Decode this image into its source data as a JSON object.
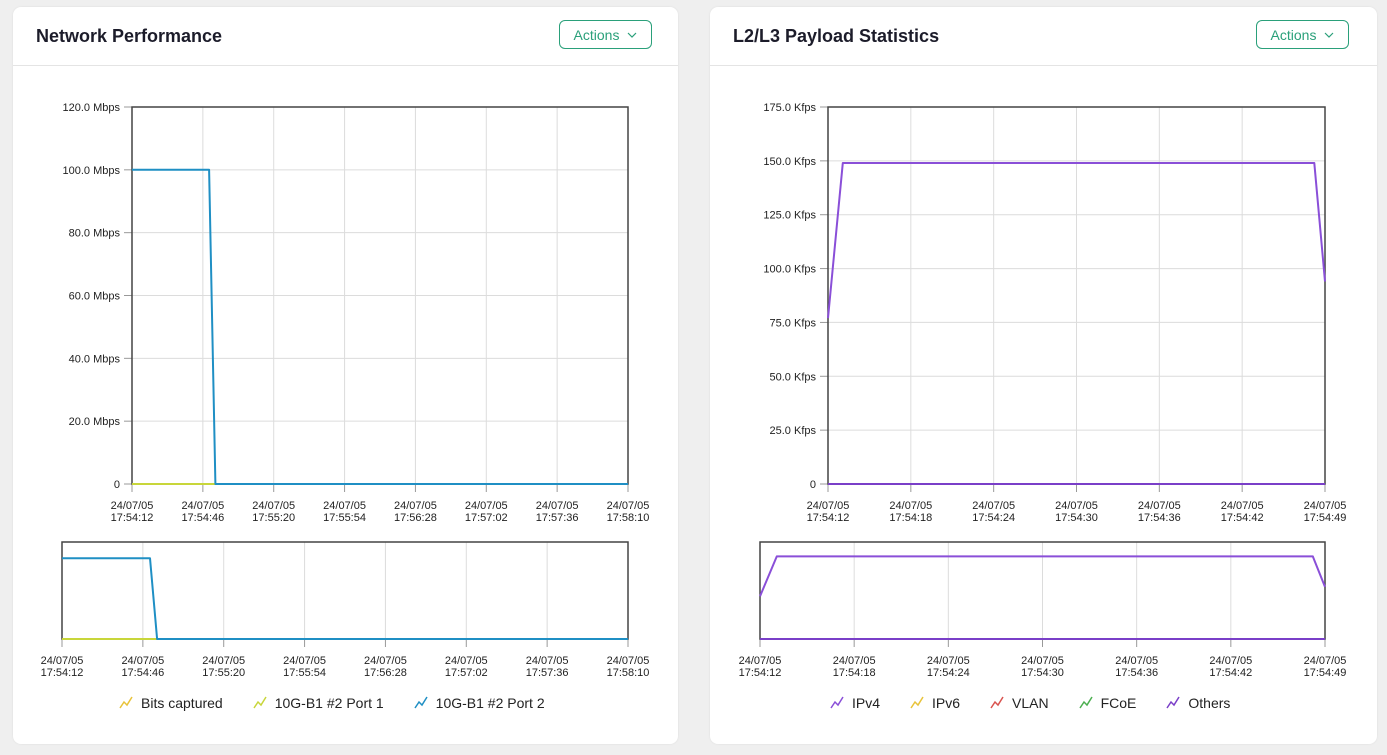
{
  "left_card": {
    "title": "Network Performance",
    "actions_label": "Actions",
    "legend": [
      {
        "label": "Bits captured",
        "color": "#e8c33a"
      },
      {
        "label": "10G-B1 #2 Port 1",
        "color": "#c8d63a"
      },
      {
        "label": "10G-B1 #2 Port 2",
        "color": "#1f8fc4"
      }
    ]
  },
  "right_card": {
    "title": "L2/L3 Payload Statistics",
    "actions_label": "Actions",
    "legend": [
      {
        "label": "IPv4",
        "color": "#8a4fd8"
      },
      {
        "label": "IPv6",
        "color": "#e8c33a"
      },
      {
        "label": "VLAN",
        "color": "#d9534f"
      },
      {
        "label": "FCoE",
        "color": "#4caf50"
      },
      {
        "label": "Others",
        "color": "#7a3fc8"
      }
    ]
  },
  "chart_data": [
    {
      "type": "line",
      "title": "Network Performance",
      "ylim": [
        0,
        120
      ],
      "y_ticks": [
        "0",
        "20.0 Mbps",
        "40.0 Mbps",
        "60.0 Mbps",
        "80.0 Mbps",
        "100.0 Mbps",
        "120.0 Mbps"
      ],
      "x_ticks": [
        [
          "24/07/05",
          "17:54:12"
        ],
        [
          "24/07/05",
          "17:54:46"
        ],
        [
          "24/07/05",
          "17:55:20"
        ],
        [
          "24/07/05",
          "17:55:54"
        ],
        [
          "24/07/05",
          "17:56:28"
        ],
        [
          "24/07/05",
          "17:57:02"
        ],
        [
          "24/07/05",
          "17:57:36"
        ],
        [
          "24/07/05",
          "17:58:10"
        ]
      ],
      "x_range_seconds": [
        0,
        238
      ],
      "grid": true,
      "legend_position": "bottom",
      "series": [
        {
          "name": "Bits captured",
          "color": "#e8c33a",
          "x": [
            0,
            36,
            37,
            238
          ],
          "y": [
            0,
            0,
            0,
            0
          ]
        },
        {
          "name": "10G-B1 #2 Port 1",
          "color": "#c8d63a",
          "x": [
            0,
            238
          ],
          "y": [
            0,
            0
          ]
        },
        {
          "name": "10G-B1 #2 Port 2",
          "color": "#1f8fc4",
          "x": [
            0,
            37,
            40,
            238
          ],
          "y": [
            100,
            100,
            0,
            0
          ]
        }
      ]
    },
    {
      "type": "line",
      "title": "L2/L3 Payload Statistics",
      "ylim": [
        0,
        175
      ],
      "y_ticks": [
        "0",
        "25.0 Kfps",
        "50.0 Kfps",
        "75.0 Kfps",
        "100.0 Kfps",
        "125.0 Kfps",
        "150.0 Kfps",
        "175.0 Kfps"
      ],
      "x_ticks": [
        [
          "24/07/05",
          "17:54:12"
        ],
        [
          "24/07/05",
          "17:54:18"
        ],
        [
          "24/07/05",
          "17:54:24"
        ],
        [
          "24/07/05",
          "17:54:30"
        ],
        [
          "24/07/05",
          "17:54:36"
        ],
        [
          "24/07/05",
          "17:54:42"
        ],
        [
          "24/07/05",
          "17:54:49"
        ]
      ],
      "x_range_seconds": [
        0,
        37
      ],
      "grid": true,
      "legend_position": "bottom",
      "series": [
        {
          "name": "IPv4",
          "color": "#8a4fd8",
          "x": [
            0,
            1.1,
            36.2,
            37
          ],
          "y": [
            77,
            149,
            149,
            94
          ]
        },
        {
          "name": "IPv6",
          "color": "#e8c33a",
          "x": [
            0,
            37
          ],
          "y": [
            0,
            0
          ]
        },
        {
          "name": "VLAN",
          "color": "#d9534f",
          "x": [
            0,
            37
          ],
          "y": [
            0,
            0
          ]
        },
        {
          "name": "FCoE",
          "color": "#4caf50",
          "x": [
            0,
            37
          ],
          "y": [
            0,
            0
          ]
        },
        {
          "name": "Others",
          "color": "#7a3fc8",
          "x": [
            0,
            37
          ],
          "y": [
            0,
            0
          ]
        }
      ]
    }
  ]
}
